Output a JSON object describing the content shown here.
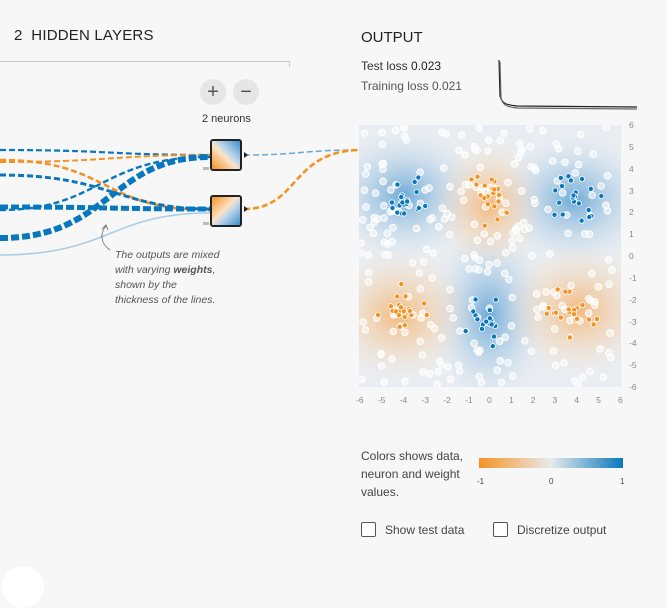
{
  "hidden_layers": {
    "count": "2",
    "title": "HIDDEN LAYERS",
    "neurons_label": "2 neurons",
    "add_symbol": "+",
    "remove_symbol": "−"
  },
  "annotation": {
    "before": "The outputs are mixed with varying ",
    "bold": "weights",
    "after": ", shown by the thickness of the lines."
  },
  "output": {
    "title": "OUTPUT",
    "test_loss_label": "Test loss",
    "test_loss_value": "0.023",
    "training_loss_label": "Training loss",
    "training_loss_value": "0.021"
  },
  "axis": {
    "x_ticks": [
      "-6",
      "-5",
      "-4",
      "-3",
      "-2",
      "-1",
      "0",
      "1",
      "2",
      "3",
      "4",
      "5",
      "6"
    ],
    "y_ticks": [
      "6",
      "5",
      "4",
      "3",
      "2",
      "1",
      "0",
      "-1",
      "-2",
      "-3",
      "-4",
      "-5",
      "-6"
    ]
  },
  "legend": {
    "text": "Colors shows data, neuron and weight values.",
    "min": "-1",
    "mid": "0",
    "max": "1"
  },
  "options": {
    "show_test_data": "Show test data",
    "discretize_output": "Discretize output"
  },
  "colors": {
    "orange": "#f59322",
    "blue": "#0877bd",
    "neutral": "#e8eaeb"
  }
}
